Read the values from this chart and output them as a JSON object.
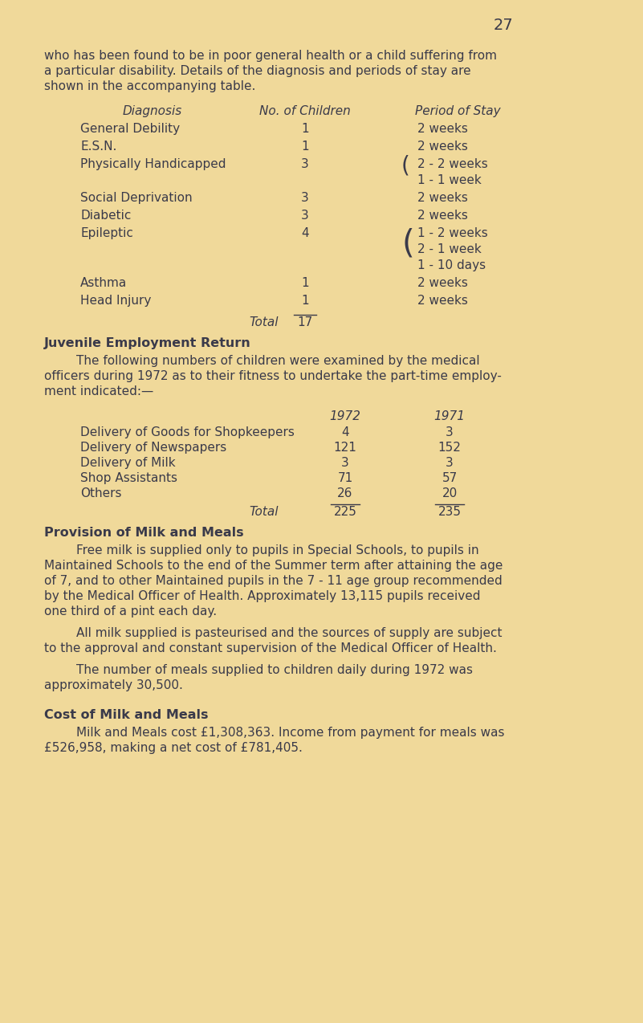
{
  "bg_color": "#f0d99a",
  "text_color": "#3a3a4a",
  "page_number": "27",
  "intro_text": [
    "who has been found to be in poor general health or a child suffering from",
    "a particular disability. Details of the diagnosis and periods of stay are",
    "shown in the accompanying table."
  ],
  "table_header": [
    "Diagnosis",
    "No. of Children",
    "Period of Stay"
  ],
  "table_rows": [
    {
      "diagnosis": "General Debility",
      "num": "1",
      "period": "2 weeks",
      "period_extra": [],
      "brace": false
    },
    {
      "diagnosis": "E.S.N.",
      "num": "1",
      "period": "2 weeks",
      "period_extra": [],
      "brace": false
    },
    {
      "diagnosis": "Physically Handicapped",
      "num": "3",
      "period": "2 - 2 weeks",
      "period_extra": [
        "1 - 1 week"
      ],
      "brace": true
    },
    {
      "diagnosis": "Social Deprivation",
      "num": "3",
      "period": "2 weeks",
      "period_extra": [],
      "brace": false
    },
    {
      "diagnosis": "Diabetic",
      "num": "3",
      "period": "2 weeks",
      "period_extra": [],
      "brace": false
    },
    {
      "diagnosis": "Epileptic",
      "num": "4",
      "period": "1 - 2 weeks",
      "period_extra": [
        "2 - 1 week",
        "1 - 10 days"
      ],
      "brace": true
    },
    {
      "diagnosis": "Asthma",
      "num": "1",
      "period": "2 weeks",
      "period_extra": [],
      "brace": false
    },
    {
      "diagnosis": "Head Injury",
      "num": "1",
      "period": "2 weeks",
      "period_extra": [],
      "brace": false
    }
  ],
  "table_total_label": "Total",
  "table_total_value": "17",
  "section2_heading": "Juvenile Employment Return",
  "section2_para_lines": [
    "The following numbers of children were examined by the medical",
    "officers during 1972 as to their fitness to undertake the part-time employ-",
    "ment indicated:—"
  ],
  "employment_col1972": "1972",
  "employment_col1971": "1971",
  "employment_rows": [
    {
      "label": "Delivery of Goods for Shopkeepers",
      "val1972": "4",
      "val1971": "3"
    },
    {
      "label": "Delivery of Newspapers",
      "val1972": "121",
      "val1971": "152"
    },
    {
      "label": "Delivery of Milk",
      "val1972": "3",
      "val1971": "3"
    },
    {
      "label": "Shop Assistants",
      "val1972": "71",
      "val1971": "57"
    },
    {
      "label": "Others",
      "val1972": "26",
      "val1971": "20"
    }
  ],
  "employment_total_label": "Total",
  "employment_total_1972": "225",
  "employment_total_1971": "235",
  "section3_heading": "Provision of Milk and Meals",
  "section3_para1_lines": [
    "Free milk is supplied only to pupils in Special Schools, to pupils in",
    "Maintained Schools to the end of the Summer term after attaining the age",
    "of 7, and to other Maintained pupils in the 7 - 11 age group recommended",
    "by the Medical Officer of Health. Approximately 13,115 pupils received",
    "one third of a pint each day."
  ],
  "section3_para2_lines": [
    "All milk supplied is pasteurised and the sources of supply are subject",
    "to the approval and constant supervision of the Medical Officer of Health."
  ],
  "section3_para3_lines": [
    "The number of meals supplied to children daily during 1972 was",
    "approximately 30,500."
  ],
  "section4_heading": "Cost of Milk and Meals",
  "section4_para_lines": [
    "Milk and Meals cost £1,308,363. Income from payment for meals was",
    "£526,958, making a net cost of £781,405."
  ]
}
